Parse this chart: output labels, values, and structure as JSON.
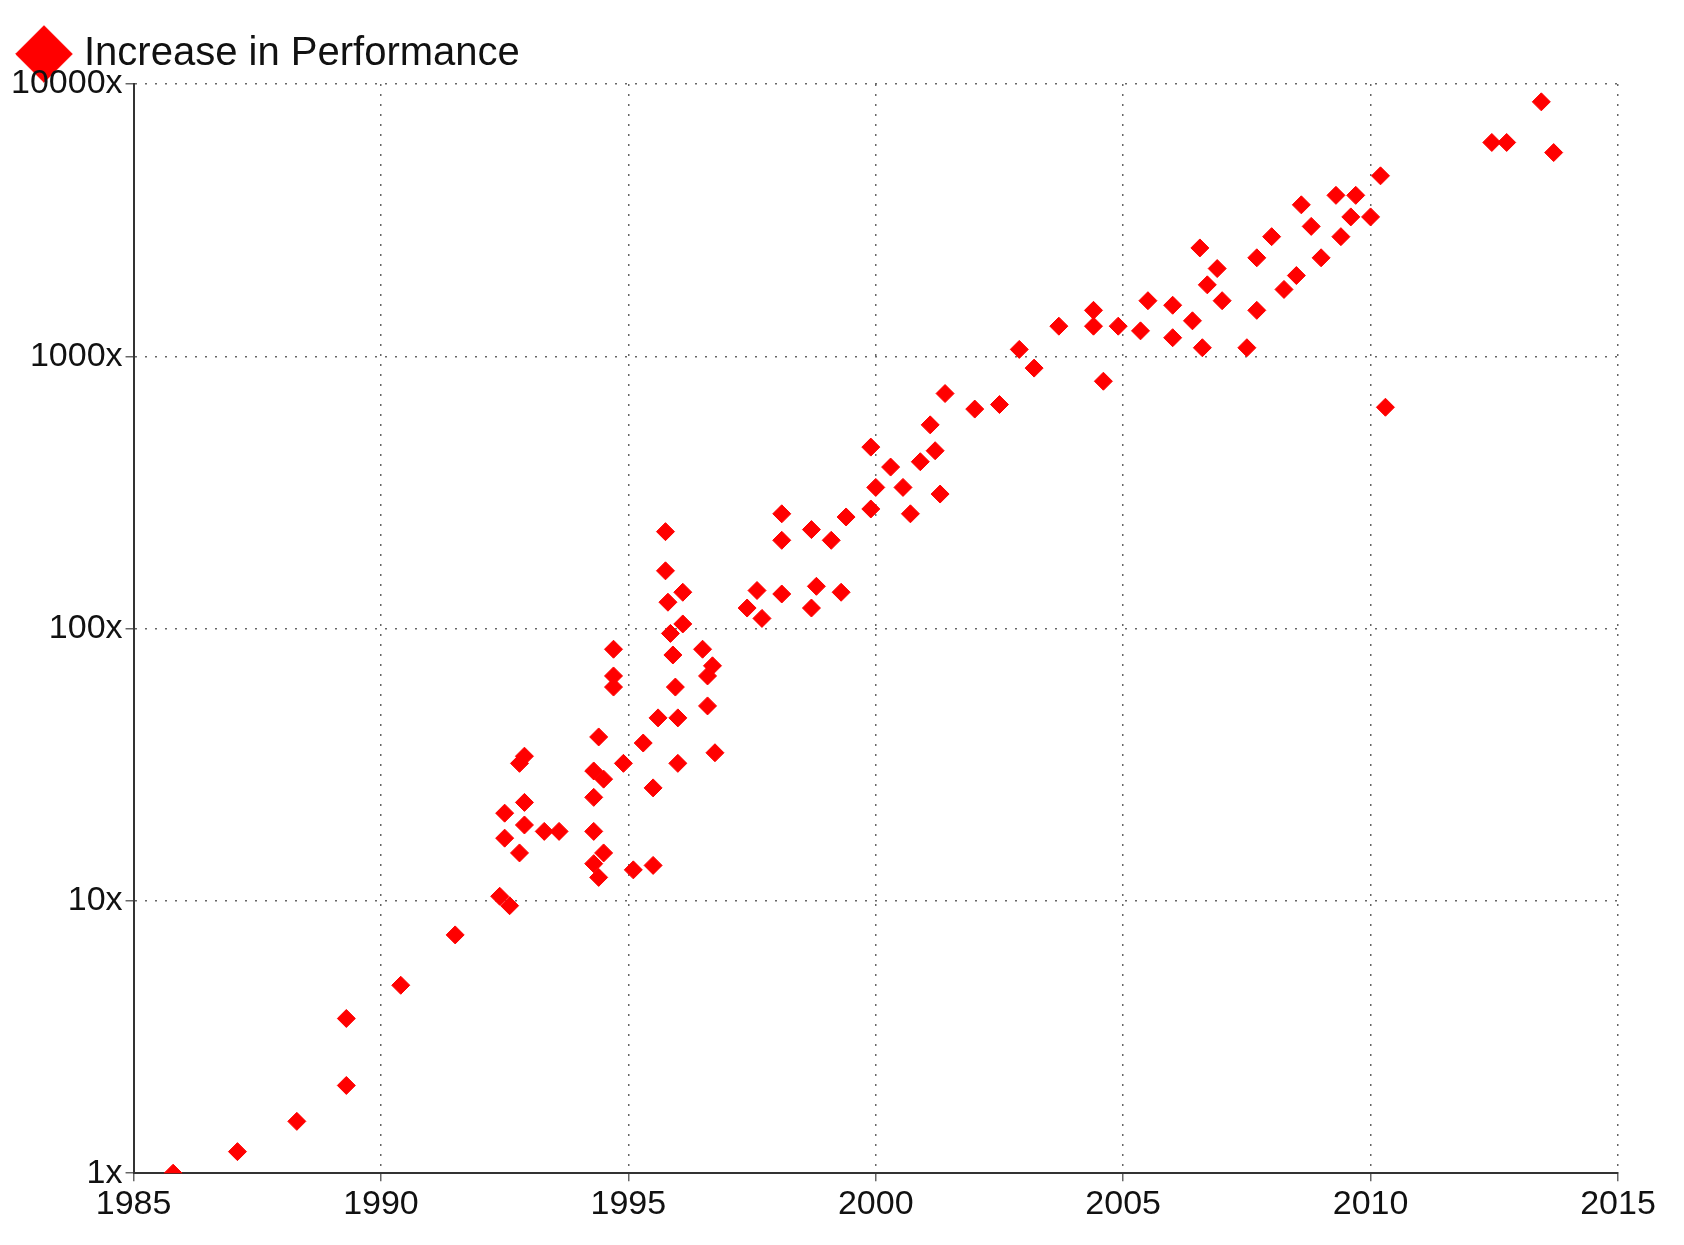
{
  "chart_data": {
    "type": "scatter",
    "log": "y",
    "grid": true,
    "legend": "top left",
    "marker": "diamond",
    "xlim": [
      1985,
      2015
    ],
    "xticks": [
      1985,
      1990,
      1995,
      2000,
      2005,
      2010,
      2015
    ],
    "ylim": [
      1,
      10000
    ],
    "yticks": [
      {
        "value": 1,
        "label": "1x"
      },
      {
        "value": 10,
        "label": "10x"
      },
      {
        "value": 100,
        "label": "100x"
      },
      {
        "value": 1000,
        "label": "1000x"
      },
      {
        "value": 10000,
        "label": "10000x"
      }
    ],
    "series": [
      {
        "name": "Increase in Performance",
        "color": "#ff0000",
        "x": [
          1985.8,
          1987.1,
          1988.3,
          1989.3,
          1989.3,
          1990.4,
          1991.5,
          1992.4,
          1992.6,
          1992.5,
          1992.5,
          1992.8,
          1992.9,
          1992.9,
          1992.8,
          1992.9,
          1993.3,
          1993.6,
          1994.3,
          1994.3,
          1994.4,
          1994.5,
          1994.3,
          1994.3,
          1994.4,
          1994.5,
          1994.7,
          1994.7,
          1994.7,
          1995.1,
          1995.5,
          1994.9,
          1995.3,
          1995.5,
          1995.6,
          1995.75,
          1995.75,
          1995.8,
          1995.85,
          1995.9,
          1995.95,
          1996.0,
          1996.0,
          1996.1,
          1996.1,
          1996.5,
          1996.6,
          1996.6,
          1996.7,
          1996.75,
          1997.4,
          1997.7,
          1997.6,
          1998.1,
          1998.1,
          1998.1,
          1998.7,
          1998.7,
          1998.8,
          1999.1,
          1999.3,
          1999.4,
          1999.9,
          1999.9,
          2000.0,
          2000.3,
          2000.55,
          2000.7,
          2000.9,
          2001.1,
          2001.2,
          2001.3,
          2001.4,
          2002.0,
          2002.5,
          2002.9,
          2003.2,
          2003.7,
          2004.4,
          2004.4,
          2004.6,
          2004.9,
          2005.5,
          2005.35,
          2006.0,
          2006.0,
          2006.4,
          2006.55,
          2006.6,
          2006.7,
          2006.9,
          2007.0,
          2007.5,
          2007.7,
          2007.7,
          2008.0,
          2008.25,
          2008.5,
          2008.6,
          2008.8,
          2009.0,
          2009.3,
          2009.4,
          2009.6,
          2009.7,
          2010.0,
          2010.2,
          2010.3,
          2012.45,
          2012.75,
          2013.45,
          2013.7
        ],
        "values": [
          1,
          1.2,
          1.55,
          2.1,
          3.7,
          4.9,
          7.5,
          10.4,
          9.6,
          17,
          21,
          15,
          19,
          23,
          32,
          34,
          18,
          18,
          18,
          13.7,
          12.2,
          15,
          24,
          30,
          40,
          28,
          67,
          84,
          61,
          13,
          13.5,
          32,
          38,
          26,
          47,
          227,
          163,
          125,
          96,
          80,
          61,
          47,
          32,
          136,
          104,
          84,
          67,
          52,
          73,
          35,
          119,
          109,
          138,
          134,
          211,
          264,
          231,
          119,
          143,
          211,
          136,
          257,
          275,
          464,
          330,
          392,
          330,
          264,
          410,
          560,
          450,
          312,
          730,
          640,
          665,
          1060,
          905,
          1290,
          1475,
          1290,
          810,
          1290,
          1600,
          1240,
          1540,
          1170,
          1350,
          2500,
          1075,
          1830,
          2100,
          1600,
          1075,
          1475,
          2300,
          2750,
          1760,
          1980,
          3600,
          3000,
          2300,
          3900,
          2750,
          3250,
          3900,
          3250,
          4600,
          650,
          6100,
          6100,
          8600,
          5600
        ]
      }
    ]
  }
}
